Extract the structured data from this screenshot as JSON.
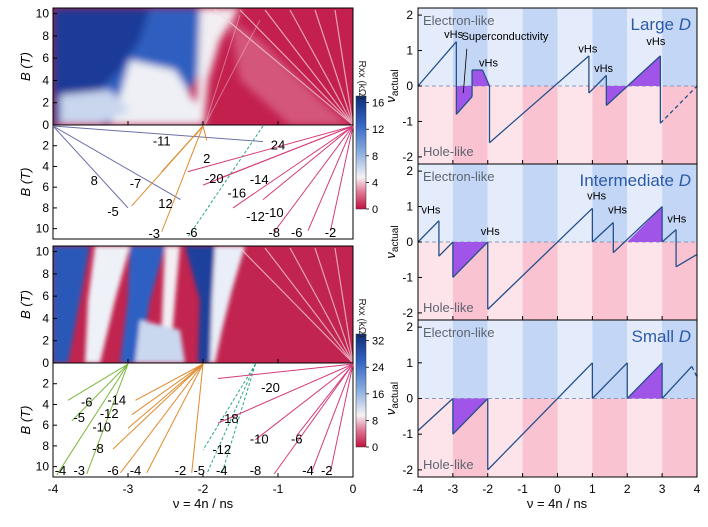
{
  "chart_data": [
    {
      "type": "heatmap",
      "panel": "top-left-color-map",
      "xlabel": "",
      "ylabel": "B (T)",
      "xlim": [
        -4,
        0
      ],
      "ylim": [
        0,
        10.5
      ],
      "yticks": [
        "0",
        "2",
        "4",
        "6",
        "8",
        "10"
      ],
      "colorbar": {
        "label": "Rxx (kΩ)",
        "ticks": [
          "0",
          "4",
          "8",
          "12",
          "16"
        ],
        "range": [
          0,
          17
        ]
      }
    },
    {
      "type": "line",
      "panel": "top-left-fan-diagram",
      "ylabel": "B (T)",
      "xlim": [
        -4,
        0
      ],
      "ylim": [
        11,
        0
      ],
      "yticks": [
        "2",
        "4",
        "6",
        "8",
        "10"
      ],
      "fans": [
        {
          "origin": -4,
          "color": "#6b6fa8",
          "style": "solid",
          "lines": [
            {
              "label": "24"
            },
            {
              "label": "12"
            },
            {
              "label": "8"
            }
          ]
        },
        {
          "origin": -2,
          "color": "#e08a2c",
          "style": "solid",
          "lines": [
            {
              "label": "2"
            },
            {
              "label": "-11"
            },
            {
              "label": "-7"
            },
            {
              "label": "-5"
            },
            {
              "label": "-3"
            }
          ]
        },
        {
          "origin": 0,
          "color": "#d63a7a",
          "style": "solid",
          "lines": [
            {
              "label": "-20"
            },
            {
              "label": "-16"
            },
            {
              "label": "-14"
            },
            {
              "label": "-12"
            },
            {
              "label": "-10"
            },
            {
              "label": "-8"
            },
            {
              "label": "-6"
            },
            {
              "label": "-2"
            }
          ]
        },
        {
          "origin": -1.2,
          "color": "#2aa58a",
          "style": "dashed",
          "lines": [
            {
              "label": "-6"
            }
          ]
        }
      ]
    },
    {
      "type": "heatmap",
      "panel": "bottom-left-color-map",
      "ylabel": "B (T)",
      "xlim": [
        -4,
        0
      ],
      "ylim": [
        0,
        10.5
      ],
      "yticks": [
        "0",
        "2",
        "4",
        "6",
        "8",
        "10"
      ],
      "colorbar": {
        "label": "Rxx (kΩ)",
        "ticks": [
          "0",
          "8",
          "16",
          "24",
          "32"
        ],
        "range": [
          0,
          34
        ]
      }
    },
    {
      "type": "line",
      "panel": "bottom-left-fan-diagram",
      "xlabel": "ν = 4n / ns",
      "ylabel": "B (T)",
      "xlim": [
        -4,
        0
      ],
      "ylim": [
        11,
        0
      ],
      "xticks": [
        "-4",
        "-3",
        "-2",
        "-1",
        "0"
      ],
      "yticks": [
        "2",
        "4",
        "6",
        "8",
        "10"
      ],
      "fans": [
        {
          "origin": -3,
          "color": "#7ab83c",
          "style": "solid",
          "lines": [
            {
              "label": "-6"
            },
            {
              "label": "-5"
            },
            {
              "label": "-4"
            },
            {
              "label": "-3"
            }
          ]
        },
        {
          "origin": -2,
          "color": "#e08a2c",
          "style": "solid",
          "lines": [
            {
              "label": "-14"
            },
            {
              "label": "-12"
            },
            {
              "label": "-10"
            },
            {
              "label": "-8"
            },
            {
              "label": "-6"
            },
            {
              "label": "-4"
            },
            {
              "label": "-2"
            }
          ]
        },
        {
          "origin": -1.3,
          "color": "#2aa58a",
          "style": "dashed",
          "lines": [
            {
              "label": "-12"
            },
            {
              "label": "-5"
            },
            {
              "label": "-4"
            }
          ]
        },
        {
          "origin": 0,
          "color": "#d63a7a",
          "style": "solid",
          "lines": [
            {
              "label": "-20"
            },
            {
              "label": "-18"
            },
            {
              "label": "-10"
            },
            {
              "label": "-8"
            },
            {
              "label": "-6"
            },
            {
              "label": "-4"
            },
            {
              "label": "-2"
            }
          ]
        }
      ]
    },
    {
      "type": "line",
      "panel": "right-large-D",
      "title": "Large D",
      "ylabel": "νactual",
      "xlim": [
        -4,
        4
      ],
      "ylim": [
        -2.2,
        2.2
      ],
      "yticks": [
        "-2",
        "-1",
        "0",
        "1",
        "2"
      ],
      "region_labels": {
        "top": "Electron-like",
        "bottom": "Hole-like"
      },
      "annotations": [
        "Superconductivity",
        "vHs",
        "vHs",
        "vHs",
        "vHs",
        "vHs"
      ],
      "segments": [
        {
          "x": [
            -4,
            -2.9
          ],
          "y": [
            0,
            1.25
          ]
        },
        {
          "x": [
            -2.9,
            -2.9
          ],
          "y": [
            1.25,
            -0.8
          ]
        },
        {
          "x": [
            -2.9,
            -2.45
          ],
          "y": [
            -0.8,
            -0.3
          ]
        },
        {
          "x": [
            -2.45,
            -2.45
          ],
          "y": [
            -0.3,
            0.45
          ]
        },
        {
          "x": [
            -2.45,
            -2.15
          ],
          "y": [
            0.45,
            0.45
          ]
        },
        {
          "x": [
            -2.15,
            -1.95
          ],
          "y": [
            0.45,
            0
          ]
        },
        {
          "x": [
            -1.95,
            -1.95
          ],
          "y": [
            0,
            -1.6
          ]
        },
        {
          "x": [
            -1.95,
            0.9
          ],
          "y": [
            -1.6,
            0.85
          ]
        },
        {
          "x": [
            0.9,
            0.9
          ],
          "y": [
            0.85,
            -0.2
          ]
        },
        {
          "x": [
            0.9,
            1.4
          ],
          "y": [
            -0.2,
            0.3
          ]
        },
        {
          "x": [
            1.4,
            1.4
          ],
          "y": [
            0.3,
            -0.55
          ]
        },
        {
          "x": [
            1.4,
            2.95
          ],
          "y": [
            -0.55,
            0.85
          ]
        },
        {
          "x": [
            2.95,
            2.95
          ],
          "y": [
            0.85,
            -1.05
          ]
        },
        {
          "x": [
            2.95,
            4
          ],
          "y": [
            -1.05,
            0
          ],
          "style": "dashed"
        }
      ],
      "shaded": [
        {
          "x": [
            -2.9,
            -2.15
          ],
          "y": [
            0,
            0
          ],
          "fill_to": [
            -0.8,
            0.45
          ]
        },
        {
          "x": [
            1.45,
            1.85
          ],
          "y": [
            0,
            0
          ]
        },
        {
          "x": [
            2.0,
            2.95
          ],
          "y": [
            0,
            0.85
          ]
        }
      ],
      "bands": [
        "-3",
        "-2",
        "-1",
        "0",
        "1",
        "2",
        "3"
      ]
    },
    {
      "type": "line",
      "panel": "right-intermediate-D",
      "title": "Intermediate D",
      "ylabel": "νactual",
      "xlim": [
        -4,
        4
      ],
      "ylim": [
        -2.2,
        2.2
      ],
      "yticks": [
        "-2",
        "-1",
        "0",
        "1",
        "2"
      ],
      "region_labels": {
        "top": "Electron-like",
        "bottom": "Hole-like"
      },
      "annotations": [
        "vHs",
        "vHs",
        "vHs",
        "vHs",
        "vHs"
      ],
      "segments": [
        {
          "x": [
            -4,
            -3.4
          ],
          "y": [
            0,
            0.6
          ]
        },
        {
          "x": [
            -3.4,
            -3.4
          ],
          "y": [
            0.6,
            -0.4
          ]
        },
        {
          "x": [
            -3.4,
            -3.0
          ],
          "y": [
            -0.4,
            0
          ]
        },
        {
          "x": [
            -3.0,
            -3.0
          ],
          "y": [
            0,
            -1.0
          ]
        },
        {
          "x": [
            -3.0,
            -2.0
          ],
          "y": [
            -1.0,
            0
          ]
        },
        {
          "x": [
            -2.0,
            -2.0
          ],
          "y": [
            0,
            -1.9
          ]
        },
        {
          "x": [
            -2.0,
            1.0
          ],
          "y": [
            -1.9,
            0.95
          ]
        },
        {
          "x": [
            1.0,
            1.0
          ],
          "y": [
            0.95,
            0
          ]
        },
        {
          "x": [
            1.0,
            1.6
          ],
          "y": [
            0,
            0.55
          ]
        },
        {
          "x": [
            1.6,
            1.6
          ],
          "y": [
            0.55,
            -0.3
          ]
        },
        {
          "x": [
            1.6,
            3.0
          ],
          "y": [
            -0.3,
            1.0
          ]
        },
        {
          "x": [
            3.0,
            3.0
          ],
          "y": [
            1.0,
            0
          ]
        },
        {
          "x": [
            3.0,
            3.4
          ],
          "y": [
            0,
            0.35
          ]
        },
        {
          "x": [
            3.4,
            3.4
          ],
          "y": [
            0.35,
            -0.7
          ]
        },
        {
          "x": [
            3.4,
            4
          ],
          "y": [
            -0.7,
            -0.35
          ]
        }
      ],
      "bands": [
        "-3",
        "-2",
        "-1",
        "0",
        "1",
        "2",
        "3"
      ]
    },
    {
      "type": "line",
      "panel": "right-small-D",
      "title": "Small D",
      "xlabel": "ν = 4n / ns",
      "ylabel": "νactual",
      "xlim": [
        -4,
        4
      ],
      "ylim": [
        -2.2,
        2.2
      ],
      "xticks": [
        "-4",
        "-3",
        "-2",
        "-1",
        "0",
        "1",
        "2",
        "3",
        "4"
      ],
      "yticks": [
        "-2",
        "-1",
        "0",
        "1",
        "2"
      ],
      "region_labels": {
        "top": "Electron-like",
        "bottom": "Hole-like"
      },
      "segments": [
        {
          "x": [
            -4,
            -3.0
          ],
          "y": [
            -0.9,
            0
          ]
        },
        {
          "x": [
            -3.0,
            -3.0
          ],
          "y": [
            0,
            -1.0
          ]
        },
        {
          "x": [
            -3.0,
            -2.0
          ],
          "y": [
            -1.0,
            0
          ]
        },
        {
          "x": [
            -2.0,
            -2.0
          ],
          "y": [
            0,
            -2.0
          ]
        },
        {
          "x": [
            -2.0,
            1.0
          ],
          "y": [
            -2.0,
            1.0
          ]
        },
        {
          "x": [
            1.0,
            1.0
          ],
          "y": [
            1.0,
            0
          ]
        },
        {
          "x": [
            1.0,
            2.0
          ],
          "y": [
            0,
            1.0
          ]
        },
        {
          "x": [
            2.0,
            2.0
          ],
          "y": [
            1.0,
            0
          ]
        },
        {
          "x": [
            2.0,
            3.0
          ],
          "y": [
            0,
            1.0
          ]
        },
        {
          "x": [
            3.0,
            3.0
          ],
          "y": [
            1.0,
            0
          ]
        },
        {
          "x": [
            3.0,
            3.85
          ],
          "y": [
            0,
            0.9
          ]
        },
        {
          "x": [
            3.85,
            4
          ],
          "y": [
            0.9,
            0.6
          ],
          "style": "dashed"
        }
      ],
      "bands": [
        "-3",
        "-2",
        "-1",
        "0",
        "1",
        "2",
        "3"
      ]
    }
  ],
  "colors": {
    "line": "#24508a",
    "purple": "#a155e8",
    "electron_bg_light": "#e4ecfb",
    "electron_bg_dark": "#c4d6f5",
    "hole_bg_light": "#fde3ea",
    "hole_bg_dark": "#f9c3d2",
    "title": "#2c5aa8",
    "map_blue": "#1c3f9a",
    "map_red": "#b01b43",
    "map_white": "#f4f1f3"
  }
}
